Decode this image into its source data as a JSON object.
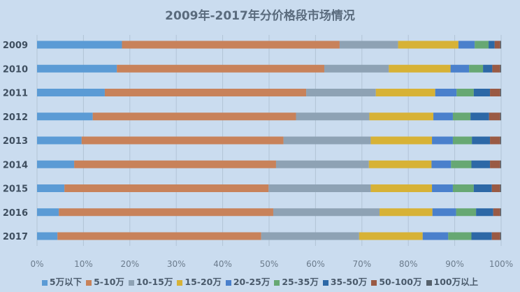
{
  "chart_data": {
    "type": "bar",
    "orientation": "horizontal",
    "stacked": "percent",
    "title": "2009年-2017年分价格段市场情况",
    "categories": [
      "2009",
      "2010",
      "2011",
      "2012",
      "2013",
      "2014",
      "2015",
      "2016",
      "2017"
    ],
    "xlim": [
      0,
      100
    ],
    "xticks": [
      "0%",
      "10%",
      "20%",
      "30%",
      "40%",
      "50%",
      "60%",
      "70%",
      "80%",
      "90%",
      "100%"
    ],
    "grid": true,
    "legend_position": "bottom",
    "series": [
      {
        "name": "5万以下",
        "color": "#5b9bd5",
        "values": [
          18.3,
          17.2,
          14.6,
          12.0,
          9.6,
          8.0,
          5.9,
          4.7,
          4.4
        ]
      },
      {
        "name": "5-10万",
        "color": "#c8825a",
        "values": [
          46.9,
          44.7,
          43.4,
          43.8,
          43.5,
          43.5,
          44.0,
          46.2,
          43.9
        ]
      },
      {
        "name": "10-15万",
        "color": "#8ea2b4",
        "values": [
          12.6,
          13.9,
          15.0,
          15.8,
          18.8,
          20.0,
          22.0,
          22.9,
          21.1
        ]
      },
      {
        "name": "15-20万",
        "color": "#d7b236",
        "values": [
          13.0,
          13.3,
          12.8,
          13.8,
          13.2,
          13.5,
          13.2,
          11.4,
          13.7
        ]
      },
      {
        "name": "20-25万",
        "color": "#4a80cc",
        "values": [
          3.5,
          4.0,
          4.6,
          4.2,
          4.5,
          4.2,
          4.5,
          5.1,
          5.5
        ]
      },
      {
        "name": "25-35万",
        "color": "#67a873",
        "values": [
          3.0,
          3.0,
          3.7,
          3.8,
          4.1,
          4.4,
          4.5,
          4.3,
          5.0
        ]
      },
      {
        "name": "35-50万",
        "color": "#2d68a6",
        "values": [
          1.3,
          2.0,
          3.5,
          4.0,
          3.9,
          4.0,
          3.9,
          3.7,
          4.4
        ]
      },
      {
        "name": "50-100万",
        "color": "#9a5a44",
        "values": [
          1.2,
          1.7,
          2.2,
          2.4,
          2.2,
          2.2,
          1.8,
          1.5,
          1.8
        ]
      },
      {
        "name": "100万以上",
        "color": "#55606b",
        "values": [
          0.2,
          0.2,
          0.2,
          0.2,
          0.2,
          0.2,
          0.2,
          0.2,
          0.2
        ]
      }
    ]
  }
}
